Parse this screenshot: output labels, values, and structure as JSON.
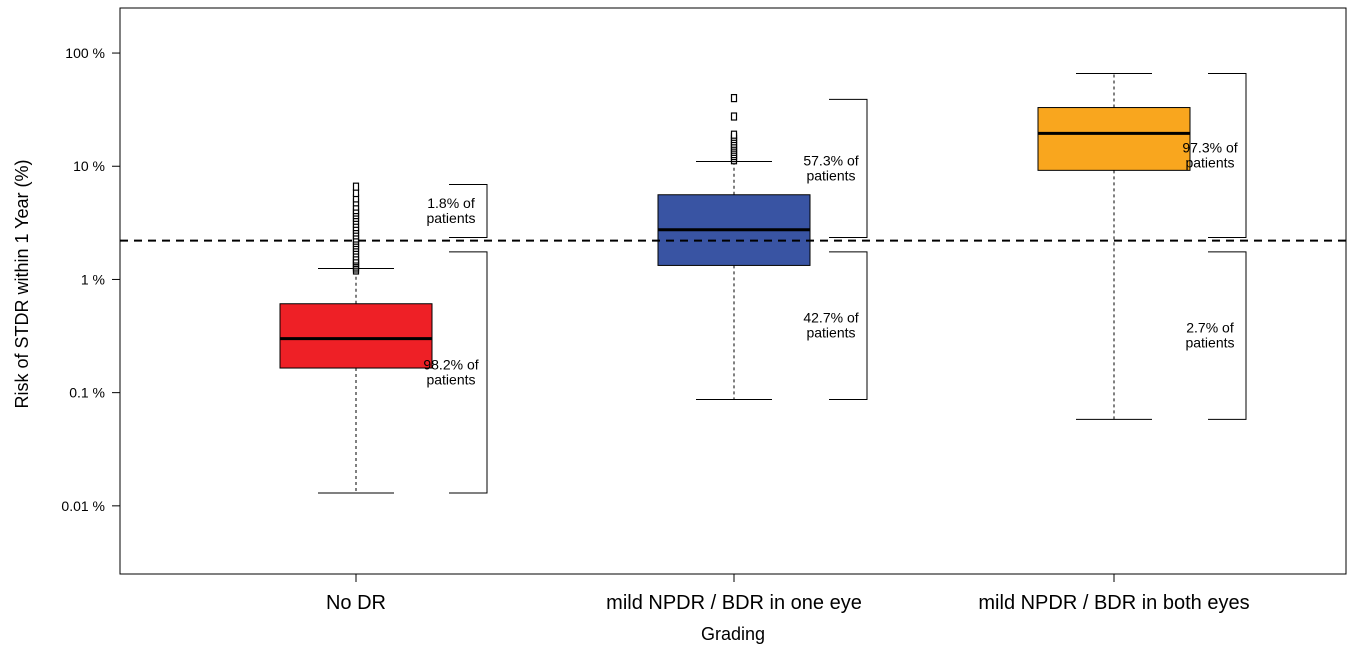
{
  "chart_data": {
    "type": "boxplot",
    "title": "",
    "xlabel": "Grading",
    "ylabel": "Risk of STDR within 1 Year (%)",
    "yscale": "log",
    "ylim": [
      0.0025,
      250
    ],
    "yticks": [
      {
        "value": 100,
        "label": "100 %"
      },
      {
        "value": 10,
        "label": "10 %"
      },
      {
        "value": 1,
        "label": "1 %"
      },
      {
        "value": 0.1,
        "label": "0.1 %"
      },
      {
        "value": 0.01,
        "label": "0.01 %"
      }
    ],
    "threshold": 2.2,
    "categories": [
      "No DR",
      "mild NPDR / BDR in one eye",
      "mild NPDR / BDR in both eyes"
    ],
    "boxes": [
      {
        "category": "No DR",
        "color": "#ee2026",
        "whisker_low": 0.013,
        "q1": 0.165,
        "median": 0.3,
        "q3": 0.61,
        "whisker_high": 1.25,
        "outliers": [
          1.2,
          1.25,
          1.3,
          1.35,
          1.4,
          1.45,
          1.5,
          1.6,
          1.7,
          1.8,
          1.9,
          2.0,
          2.1,
          2.2,
          2.3,
          2.45,
          2.6,
          2.75,
          2.9,
          3.1,
          3.3,
          3.5,
          3.7,
          3.9,
          4.1,
          4.4,
          4.8,
          5.2,
          5.8,
          6.6
        ]
      },
      {
        "category": "mild NPDR / BDR in one eye",
        "color": "#3954a3",
        "whisker_low": 0.087,
        "q1": 1.33,
        "median": 2.75,
        "q3": 5.6,
        "whisker_high": 11.0,
        "outliers": [
          11.3,
          11.8,
          12.3,
          12.8,
          13.4,
          14.0,
          14.6,
          15.2,
          15.8,
          16.6,
          17.4,
          18.2,
          19.0,
          27.5,
          40.0
        ]
      },
      {
        "category": "mild NPDR / BDR in both eyes",
        "color": "#f9a61e",
        "whisker_low": 0.058,
        "q1": 9.2,
        "median": 19.5,
        "q3": 33.0,
        "whisker_high": 66.0,
        "outliers": []
      }
    ],
    "annotations": [
      {
        "category": "No DR",
        "position": "above",
        "line1": "1.8% of",
        "line2": "patients",
        "from": 2.35,
        "to": 6.9
      },
      {
        "category": "No DR",
        "position": "below",
        "line1": "98.2% of",
        "line2": "patients",
        "from": 0.013,
        "to": 1.75
      },
      {
        "category": "mild NPDR / BDR in one eye",
        "position": "above",
        "line1": "57.3% of",
        "line2": "patients",
        "from": 2.35,
        "to": 39.0
      },
      {
        "category": "mild NPDR / BDR in one eye",
        "position": "below",
        "line1": "42.7% of",
        "line2": "patients",
        "from": 0.087,
        "to": 1.75
      },
      {
        "category": "mild NPDR / BDR in both eyes",
        "position": "above",
        "line1": "97.3% of",
        "line2": "patients",
        "from": 2.35,
        "to": 66.0
      },
      {
        "category": "mild NPDR / BDR in both eyes",
        "position": "below",
        "line1": "2.7% of",
        "line2": "patients",
        "from": 0.058,
        "to": 1.75
      }
    ]
  }
}
